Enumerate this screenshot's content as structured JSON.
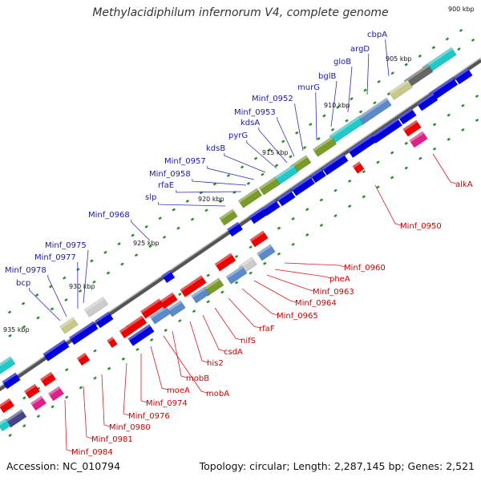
{
  "title": "Methylacidiphilum infernorum V4, complete genome",
  "accession": "Accession: NC_010794",
  "topology": "Topology: circular; Length: 2,287,145 bp; Genes: 2,521",
  "colors": {
    "backbone": "#8a8a8a",
    "forward_label": "#1a1aa6",
    "reverse_label": "#cc0000",
    "tick": "#2e8b2e"
  },
  "kbp_labels": [
    {
      "id": "900",
      "text": "900 kbp"
    },
    {
      "id": "905",
      "text": "905 kbp"
    },
    {
      "id": "910",
      "text": "910 kbp"
    },
    {
      "id": "915",
      "text": "915 kbp"
    },
    {
      "id": "920",
      "text": "920 kbp"
    },
    {
      "id": "925",
      "text": "925 kbp"
    },
    {
      "id": "930",
      "text": "930 kbp"
    },
    {
      "id": "935",
      "text": "935 kbp"
    }
  ],
  "forward_genes": [
    {
      "id": "cbpA",
      "text": "cbpA"
    },
    {
      "id": "argD",
      "text": "argD"
    },
    {
      "id": "gloB",
      "text": "gloB"
    },
    {
      "id": "bglB",
      "text": "bglB"
    },
    {
      "id": "murG",
      "text": "murG"
    },
    {
      "id": "Minf_0952",
      "text": "Minf_0952"
    },
    {
      "id": "Minf_0953",
      "text": "Minf_0953"
    },
    {
      "id": "kdsA",
      "text": "kdsA"
    },
    {
      "id": "pyrG",
      "text": "pyrG"
    },
    {
      "id": "kdsB",
      "text": "kdsB"
    },
    {
      "id": "Minf_0957",
      "text": "Minf_0957"
    },
    {
      "id": "Minf_0958",
      "text": "Minf_0958"
    },
    {
      "id": "rfaE",
      "text": "rfaE"
    },
    {
      "id": "slp",
      "text": "slp"
    },
    {
      "id": "Minf_0968",
      "text": "Minf_0968"
    },
    {
      "id": "Minf_0975",
      "text": "Minf_0975"
    },
    {
      "id": "Minf_0977",
      "text": "Minf_0977"
    },
    {
      "id": "Minf_0978",
      "text": "Minf_0978"
    },
    {
      "id": "bcp",
      "text": "bcp"
    }
  ],
  "reverse_genes": [
    {
      "id": "alkA",
      "text": "alkA"
    },
    {
      "id": "Minf_0950",
      "text": "Minf_0950"
    },
    {
      "id": "Minf_0960",
      "text": "Minf_0960"
    },
    {
      "id": "pheA",
      "text": "pheA"
    },
    {
      "id": "Minf_0963",
      "text": "Minf_0963"
    },
    {
      "id": "Minf_0964",
      "text": "Minf_0964"
    },
    {
      "id": "Minf_0965",
      "text": "Minf_0965"
    },
    {
      "id": "rfaF",
      "text": "rfaF"
    },
    {
      "id": "nifS",
      "text": "nifS"
    },
    {
      "id": "csdA",
      "text": "csdA"
    },
    {
      "id": "his2",
      "text": "his2"
    },
    {
      "id": "mobB",
      "text": "mobB"
    },
    {
      "id": "mobA",
      "text": "mobA"
    },
    {
      "id": "moeA",
      "text": "moeA"
    },
    {
      "id": "Minf_0974",
      "text": "Minf_0974"
    },
    {
      "id": "Minf_0976",
      "text": "Minf_0976"
    },
    {
      "id": "Minf_0980",
      "text": "Minf_0980"
    },
    {
      "id": "Minf_0981",
      "text": "Minf_0981"
    },
    {
      "id": "Minf_0984",
      "text": "Minf_0984"
    }
  ]
}
